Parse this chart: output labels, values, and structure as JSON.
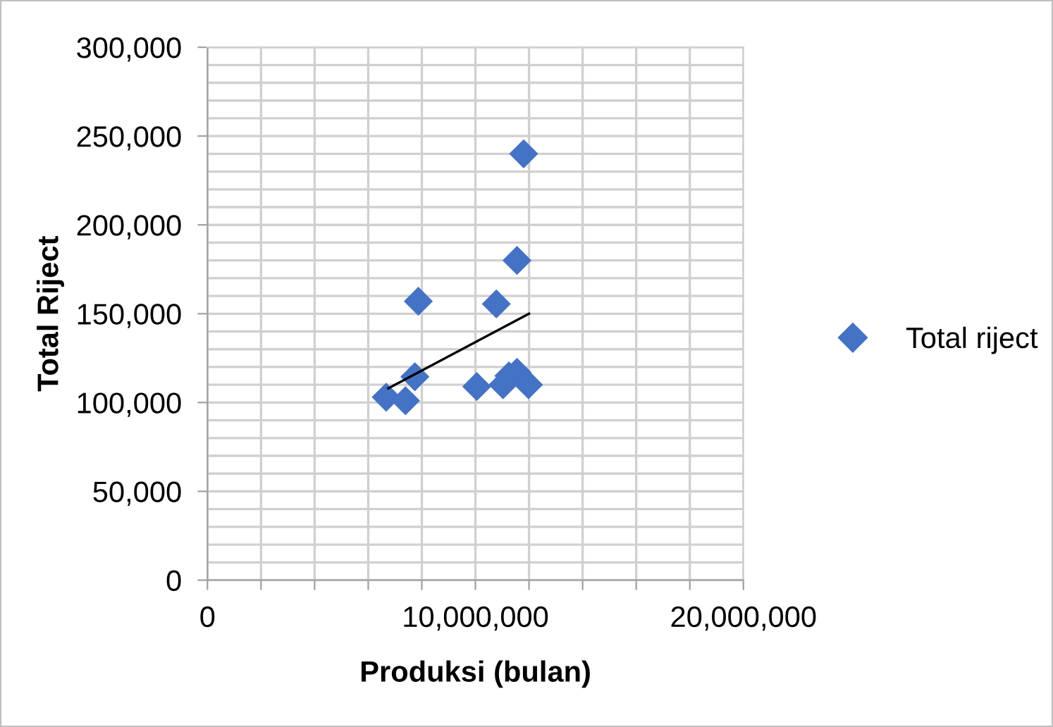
{
  "chart_data": {
    "type": "scatter",
    "xlabel": "Produksi (bulan)",
    "ylabel": "Total Riject",
    "xlim": [
      0,
      20000000
    ],
    "ylim": [
      0,
      300000
    ],
    "xticks": [
      {
        "value": 0,
        "label": "0"
      },
      {
        "value": 2000000,
        "label": null
      },
      {
        "value": 4000000,
        "label": null
      },
      {
        "value": 6000000,
        "label": null
      },
      {
        "value": 8000000,
        "label": null
      },
      {
        "value": 10000000,
        "label": "10,000,000"
      },
      {
        "value": 12000000,
        "label": null
      },
      {
        "value": 14000000,
        "label": null
      },
      {
        "value": 16000000,
        "label": null
      },
      {
        "value": 18000000,
        "label": null
      },
      {
        "value": 20000000,
        "label": "20,000,000"
      }
    ],
    "yticks": [
      {
        "value": 0,
        "label": "0"
      },
      {
        "value": 50000,
        "label": "50,000"
      },
      {
        "value": 100000,
        "label": "100,000"
      },
      {
        "value": 150000,
        "label": "150,000"
      },
      {
        "value": 200000,
        "label": "200,000"
      },
      {
        "value": 250000,
        "label": "250,000"
      },
      {
        "value": 300000,
        "label": "300,000"
      }
    ],
    "grid": true,
    "legend": "right",
    "marker": "diamond",
    "series": [
      {
        "name": "Total riject",
        "color": "#4472c4",
        "x": [
          6670000,
          7390000,
          7740000,
          7870000,
          10050000,
          10780000,
          11030000,
          11250000,
          11550000,
          11550000,
          11800000,
          11980000
        ],
        "values": [
          103000,
          101000,
          114500,
          157000,
          109000,
          155500,
          110000,
          115000,
          117000,
          180000,
          240000,
          110000
        ]
      },
      {
        "type": "line",
        "color": "#000000",
        "x": [
          6750000,
          12000000
        ],
        "values": [
          108000,
          150000
        ],
        "marker": "none",
        "line_style": "solid"
      }
    ]
  }
}
